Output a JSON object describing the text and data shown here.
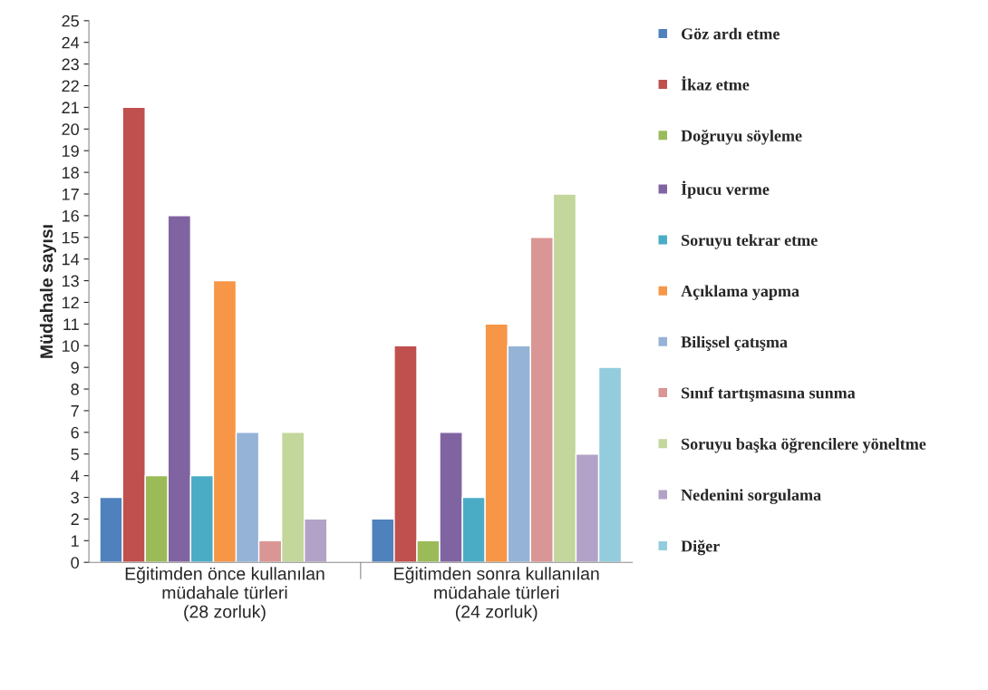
{
  "chart_data": {
    "type": "bar",
    "ylabel": "Müdahale sayısı",
    "categories": [
      "Eğitimden önce kullanılan\nmüdahale türleri\n(28 zorluk)",
      "Eğitimden sonra kullanılan\nmüdahale türleri\n(24 zorluk)"
    ],
    "series": [
      {
        "name": "Göz ardı etme",
        "color": "#4f81bd",
        "values": [
          3,
          2
        ]
      },
      {
        "name": "İkaz etme",
        "color": "#c0504d",
        "values": [
          21,
          10
        ]
      },
      {
        "name": "Doğruyu söyleme",
        "color": "#9bbb59",
        "values": [
          4,
          1
        ]
      },
      {
        "name": "İpucu verme",
        "color": "#8064a2",
        "values": [
          16,
          6
        ]
      },
      {
        "name": "Soruyu tekrar etme",
        "color": "#4bacc6",
        "values": [
          4,
          3
        ]
      },
      {
        "name": "Açıklama yapma",
        "color": "#f79646",
        "values": [
          13,
          11
        ]
      },
      {
        "name": "Bilişsel çatışma",
        "color": "#95b3d7",
        "values": [
          6,
          10
        ]
      },
      {
        "name": "Sınıf tartışmasına sunma",
        "color": "#d99694",
        "values": [
          1,
          15
        ]
      },
      {
        "name": "Soruyu başka öğrencilere yöneltme",
        "color": "#c3d69b",
        "values": [
          6,
          17
        ]
      },
      {
        "name": "Nedenini sorgulama",
        "color": "#b3a2c7",
        "values": [
          2,
          5
        ]
      },
      {
        "name": "Diğer",
        "color": "#93cddd",
        "values": [
          null,
          9
        ]
      }
    ],
    "ylim": [
      0,
      25
    ],
    "yticks": [
      0,
      1,
      2,
      3,
      4,
      5,
      6,
      7,
      8,
      9,
      10,
      11,
      12,
      13,
      14,
      15,
      16,
      17,
      18,
      19,
      20,
      21,
      22,
      23,
      24,
      25
    ],
    "grid": false,
    "legend": "right"
  }
}
